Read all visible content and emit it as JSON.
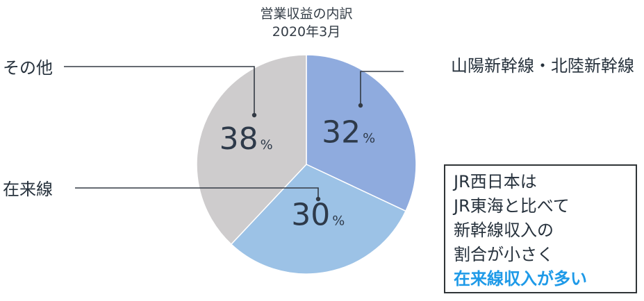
{
  "chart_data": {
    "type": "pie",
    "title": [
      "営業収益の内訳",
      "2020年3月"
    ],
    "slices": [
      {
        "label": "山陽新幹線・北陸新幹線",
        "value": 32,
        "display": "32",
        "color": "#8fabde"
      },
      {
        "label": "在来線",
        "value": 30,
        "display": "30",
        "color": "#9cc2e6"
      },
      {
        "label": "その他",
        "value": 38,
        "display": "38",
        "color": "#cecccd"
      }
    ],
    "unit": "%",
    "start_angle_deg": 0,
    "direction": "clockwise"
  },
  "callout": {
    "lines": [
      "JR西日本は",
      "JR東海と比べて",
      "新幹線収入の",
      "割合が小さく"
    ],
    "highlight": "在来線収入が多い",
    "highlight_color": "#1e9ae8"
  }
}
